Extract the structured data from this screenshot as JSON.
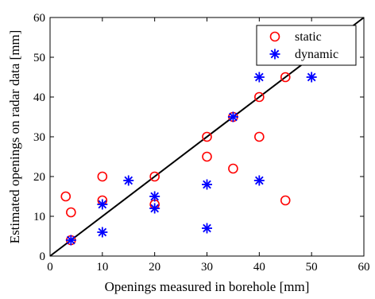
{
  "chart_data": {
    "type": "scatter",
    "title": "",
    "xlabel": "Openings measured in borehole [mm]",
    "ylabel": "Estimated  openings on radar data [mm]",
    "xlim": [
      0,
      60
    ],
    "ylim": [
      0,
      60
    ],
    "xticks": [
      "0",
      "10",
      "20",
      "30",
      "40",
      "50",
      "60"
    ],
    "yticks": [
      "0",
      "10",
      "20",
      "30",
      "40",
      "50",
      "60"
    ],
    "grid": false,
    "legend_position": "top-right",
    "series": [
      {
        "name": "static",
        "marker": "circle",
        "color": "#ff0000",
        "points": [
          [
            3,
            15
          ],
          [
            4,
            11
          ],
          [
            4,
            4
          ],
          [
            10,
            20
          ],
          [
            10,
            14
          ],
          [
            20,
            20
          ],
          [
            20,
            13
          ],
          [
            30,
            30
          ],
          [
            30,
            25
          ],
          [
            35,
            35
          ],
          [
            35,
            22
          ],
          [
            40,
            40
          ],
          [
            40,
            30
          ],
          [
            45,
            45
          ],
          [
            45,
            14
          ]
        ]
      },
      {
        "name": "dynamic",
        "marker": "asterisk",
        "color": "#0000ff",
        "points": [
          [
            4,
            4
          ],
          [
            10,
            13
          ],
          [
            10,
            6
          ],
          [
            15,
            19
          ],
          [
            20,
            15
          ],
          [
            20,
            12
          ],
          [
            30,
            18
          ],
          [
            30,
            7
          ],
          [
            35,
            35
          ],
          [
            40,
            45
          ],
          [
            40,
            19
          ],
          [
            50,
            45
          ]
        ]
      }
    ],
    "reference_line": {
      "color": "#000000",
      "from": [
        0,
        0
      ],
      "to": [
        60,
        60
      ]
    }
  }
}
